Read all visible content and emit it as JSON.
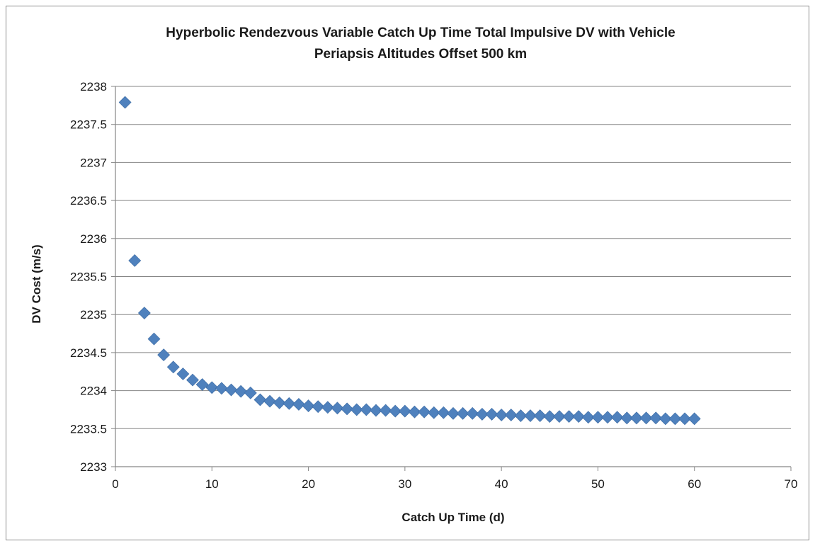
{
  "chart_data": {
    "type": "scatter",
    "title": [
      "Hyperbolic Rendezvous Variable Catch Up Time Total Impulsive DV with Vehicle",
      "Periapsis Altitudes Offset 500 km"
    ],
    "xlabel": "Catch Up Time (d)",
    "ylabel": "DV Cost (m/s)",
    "xlim": [
      0,
      70
    ],
    "ylim": [
      2233,
      2238
    ],
    "xticks": [
      0,
      10,
      20,
      30,
      40,
      50,
      60,
      70
    ],
    "yticks": [
      2233,
      2233.5,
      2234,
      2234.5,
      2235,
      2235.5,
      2236,
      2236.5,
      2237,
      2237.5,
      2238
    ],
    "grid": "horizontal",
    "legend": "none",
    "marker": "diamond",
    "color": "#4f81bd",
    "x": [
      1,
      2,
      3,
      4,
      5,
      6,
      7,
      8,
      9,
      10,
      11,
      12,
      13,
      14,
      15,
      16,
      17,
      18,
      19,
      20,
      21,
      22,
      23,
      24,
      25,
      26,
      27,
      28,
      29,
      30,
      31,
      32,
      33,
      34,
      35,
      36,
      37,
      38,
      39,
      40,
      41,
      42,
      43,
      44,
      45,
      46,
      47,
      48,
      49,
      50,
      51,
      52,
      53,
      54,
      55,
      56,
      57,
      58,
      59,
      60
    ],
    "y": [
      2237.79,
      2235.71,
      2235.02,
      2234.68,
      2234.47,
      2234.31,
      2234.22,
      2234.14,
      2234.08,
      2234.04,
      2234.03,
      2234.01,
      2233.99,
      2233.97,
      2233.88,
      2233.86,
      2233.84,
      2233.83,
      2233.82,
      2233.8,
      2233.79,
      2233.78,
      2233.77,
      2233.76,
      2233.75,
      2233.75,
      2233.74,
      2233.74,
      2233.73,
      2233.73,
      2233.72,
      2233.72,
      2233.71,
      2233.71,
      2233.7,
      2233.7,
      2233.7,
      2233.69,
      2233.69,
      2233.68,
      2233.68,
      2233.67,
      2233.67,
      2233.67,
      2233.66,
      2233.66,
      2233.66,
      2233.66,
      2233.65,
      2233.65,
      2233.65,
      2233.65,
      2233.64,
      2233.64,
      2233.64,
      2233.64,
      2233.63,
      2233.63,
      2233.63,
      2233.63
    ]
  }
}
